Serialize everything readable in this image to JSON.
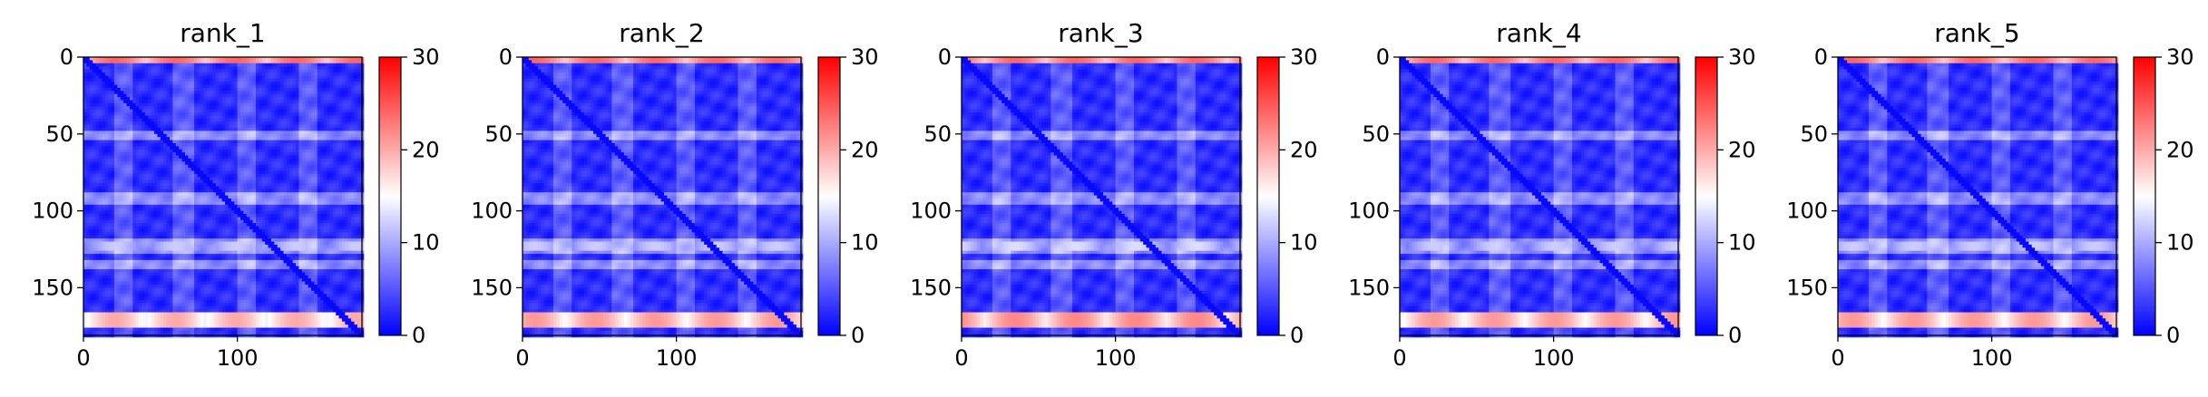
{
  "chart_data": [
    {
      "type": "heatmap",
      "title": "rank_1",
      "x_ticks": [
        0,
        100
      ],
      "y_ticks": [
        0,
        50,
        100,
        150
      ],
      "xlim": [
        0,
        181
      ],
      "ylim": [
        181,
        0
      ],
      "colorbar": {
        "ticks": [
          0,
          10,
          20,
          30
        ],
        "range": [
          0,
          30
        ],
        "colormap": [
          "#0000ff",
          "#ffffff",
          "#ff0000"
        ]
      },
      "features": {
        "hot_rows": [
          [
            0,
            2,
            24
          ],
          [
            166,
            174,
            20
          ],
          [
            120,
            124,
            12
          ]
        ],
        "band_rows": [
          [
            48,
            52
          ],
          [
            88,
            94
          ],
          [
            118,
            126
          ],
          [
            132,
            136
          ]
        ],
        "band_cols": [
          [
            20,
            30
          ],
          [
            58,
            70
          ],
          [
            100,
            110
          ],
          [
            140,
            150
          ]
        ],
        "diagonal": "low"
      }
    },
    {
      "type": "heatmap",
      "title": "rank_2",
      "x_ticks": [
        0,
        100
      ],
      "y_ticks": [
        0,
        50,
        100,
        150
      ],
      "xlim": [
        0,
        181
      ],
      "ylim": [
        181,
        0
      ],
      "colorbar": {
        "ticks": [
          0,
          10,
          20,
          30
        ],
        "range": [
          0,
          30
        ],
        "colormap": [
          "#0000ff",
          "#ffffff",
          "#ff0000"
        ]
      },
      "features": {
        "hot_rows": [
          [
            0,
            2,
            24
          ],
          [
            166,
            174,
            21
          ],
          [
            120,
            124,
            12
          ]
        ],
        "band_rows": [
          [
            48,
            52
          ],
          [
            88,
            94
          ],
          [
            118,
            126
          ],
          [
            132,
            136
          ]
        ],
        "band_cols": [
          [
            20,
            30
          ],
          [
            58,
            70
          ],
          [
            100,
            110
          ],
          [
            140,
            150
          ]
        ],
        "diagonal": "low"
      }
    },
    {
      "type": "heatmap",
      "title": "rank_3",
      "x_ticks": [
        0,
        100
      ],
      "y_ticks": [
        0,
        50,
        100,
        150
      ],
      "xlim": [
        0,
        181
      ],
      "ylim": [
        181,
        0
      ],
      "colorbar": {
        "ticks": [
          0,
          10,
          20,
          30
        ],
        "range": [
          0,
          30
        ],
        "colormap": [
          "#0000ff",
          "#ffffff",
          "#ff0000"
        ]
      },
      "features": {
        "hot_rows": [
          [
            0,
            2,
            24
          ],
          [
            166,
            174,
            22
          ],
          [
            120,
            124,
            13
          ]
        ],
        "band_rows": [
          [
            48,
            52
          ],
          [
            88,
            94
          ],
          [
            118,
            126
          ],
          [
            132,
            136
          ]
        ],
        "band_cols": [
          [
            20,
            30
          ],
          [
            58,
            70
          ],
          [
            100,
            110
          ],
          [
            140,
            150
          ]
        ],
        "diagonal": "low"
      }
    },
    {
      "type": "heatmap",
      "title": "rank_4",
      "x_ticks": [
        0,
        100
      ],
      "y_ticks": [
        0,
        50,
        100,
        150
      ],
      "xlim": [
        0,
        181
      ],
      "ylim": [
        181,
        0
      ],
      "colorbar": {
        "ticks": [
          0,
          10,
          20,
          30
        ],
        "range": [
          0,
          30
        ],
        "colormap": [
          "#0000ff",
          "#ffffff",
          "#ff0000"
        ]
      },
      "features": {
        "hot_rows": [
          [
            0,
            2,
            24
          ],
          [
            166,
            174,
            21
          ],
          [
            120,
            124,
            12
          ]
        ],
        "band_rows": [
          [
            48,
            52
          ],
          [
            88,
            94
          ],
          [
            118,
            126
          ],
          [
            132,
            136
          ]
        ],
        "band_cols": [
          [
            20,
            30
          ],
          [
            58,
            70
          ],
          [
            100,
            110
          ],
          [
            140,
            150
          ]
        ],
        "diagonal": "low"
      }
    },
    {
      "type": "heatmap",
      "title": "rank_5",
      "x_ticks": [
        0,
        100
      ],
      "y_ticks": [
        0,
        50,
        100,
        150
      ],
      "xlim": [
        0,
        181
      ],
      "ylim": [
        181,
        0
      ],
      "colorbar": {
        "ticks": [
          0,
          10,
          20,
          30
        ],
        "range": [
          0,
          30
        ],
        "colormap": [
          "#0000ff",
          "#ffffff",
          "#ff0000"
        ]
      },
      "features": {
        "hot_rows": [
          [
            0,
            2,
            24
          ],
          [
            166,
            174,
            21
          ],
          [
            120,
            124,
            12
          ]
        ],
        "band_rows": [
          [
            48,
            52
          ],
          [
            88,
            94
          ],
          [
            118,
            126
          ],
          [
            132,
            136
          ]
        ],
        "band_cols": [
          [
            20,
            30
          ],
          [
            58,
            70
          ],
          [
            100,
            110
          ],
          [
            140,
            150
          ]
        ],
        "diagonal": "low"
      }
    }
  ]
}
